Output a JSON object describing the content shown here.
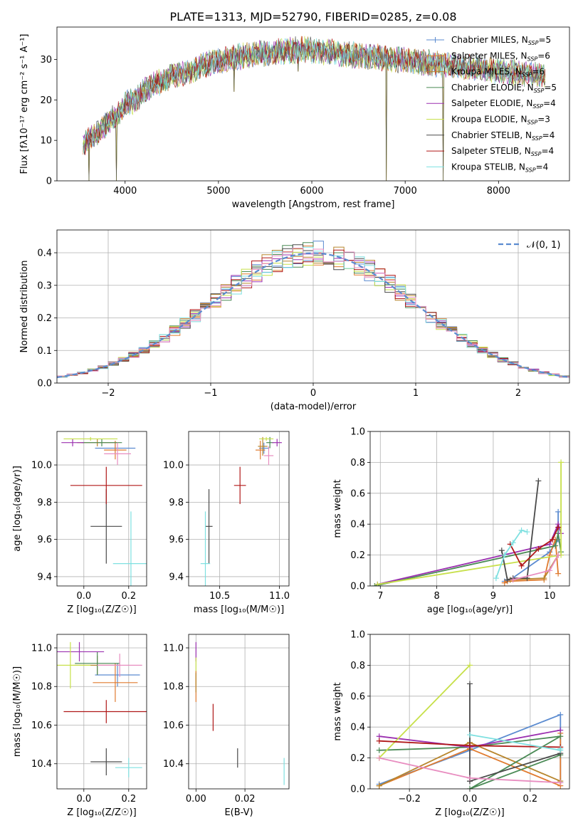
{
  "figure_title": "PLATE=1313, MJD=52790, FIBERID=0285, z=0.08",
  "chart_data": [
    {
      "id": "spectrum",
      "type": "line",
      "xlabel": "wavelength [Angstrom, rest frame]",
      "ylabel": "Flux [f$_\\lambda$10$^{-17}$ erg cm$^{-2}$ s$^{-1}$ A$^{-1}$]",
      "ylabel_display": "Flux [fλ10⁻¹⁷ erg cm⁻² s⁻¹ A⁻¹]",
      "xlim": [
        3270,
        8760
      ],
      "ylim": [
        0,
        38
      ],
      "xticks": [
        4000,
        5000,
        6000,
        7000,
        8000
      ],
      "yticks": [
        0,
        10,
        20,
        30
      ],
      "grid": false,
      "legend_position": "upper-right",
      "series": [
        {
          "name": "Chabrier MILES, N_SSP=5",
          "color": "#5b8bd0",
          "marker": "+"
        },
        {
          "name": "Salpeter MILES, N_SSP=6",
          "color": "#e07b2f",
          "marker": "+"
        },
        {
          "name": "Kroupa MILES, N_SSP=6",
          "color": "#b8862e",
          "marker": ""
        },
        {
          "name": "Chabrier ELODIE, N_SSP=5",
          "color": "#4a8a55",
          "marker": ""
        },
        {
          "name": "Salpeter ELODIE, N_SSP=4",
          "color": "#9b30b0",
          "marker": ""
        },
        {
          "name": "Kroupa ELODIE, N_SSP=3",
          "color": "#c7e04a",
          "marker": ""
        },
        {
          "name": "Chabrier STELIB, N_SSP=4",
          "color": "#4a4a4a",
          "marker": ""
        },
        {
          "name": "Salpeter STELIB, N_SSP=4",
          "color": "#b01818",
          "marker": ""
        },
        {
          "name": "Kroupa STELIB, N_SSP=4",
          "color": "#7ee0e0",
          "marker": ""
        }
      ],
      "legend_labels": [
        {
          "base": "Chabrier MILES, N",
          "sub": "SSP",
          "tail": "=5"
        },
        {
          "base": "Salpeter MILES, N",
          "sub": "SSP",
          "tail": "=6"
        },
        {
          "base": "Kroupa MILES, N",
          "sub": "SSP",
          "tail": "=6"
        },
        {
          "base": "Chabrier ELODIE, N",
          "sub": "SSP",
          "tail": "=5"
        },
        {
          "base": "Salpeter ELODIE, N",
          "sub": "SSP",
          "tail": "=4"
        },
        {
          "base": "Kroupa ELODIE, N",
          "sub": "SSP",
          "tail": "=3"
        },
        {
          "base": "Chabrier STELIB, N",
          "sub": "SSP",
          "tail": "=4"
        },
        {
          "base": "Salpeter STELIB, N",
          "sub": "SSP",
          "tail": "=4"
        },
        {
          "base": "Kroupa STELIB, N",
          "sub": "SSP",
          "tail": "=4"
        }
      ],
      "continuum": {
        "x": [
          3550,
          3650,
          3750,
          3850,
          3950,
          4000,
          4100,
          4200,
          4300,
          4400,
          4500,
          4700,
          4900,
          5100,
          5300,
          5500,
          5700,
          5900,
          6100,
          6300,
          6500,
          6700,
          6900,
          7100,
          7300,
          7500,
          7700,
          7900,
          8100,
          8300,
          8500
        ],
        "y": [
          9,
          11,
          13,
          15,
          17,
          19,
          20,
          22,
          24,
          24.5,
          26,
          27,
          29,
          30,
          31,
          31.5,
          32,
          32.5,
          32,
          31.5,
          31,
          30.5,
          30,
          29.5,
          29,
          28.5,
          28,
          27.5,
          27,
          26.5,
          26
        ]
      },
      "dips": [
        {
          "x": 3610,
          "y": 0
        },
        {
          "x": 3910,
          "y": 0
        },
        {
          "x": 5170,
          "y": 22
        },
        {
          "x": 6800,
          "y": 0
        },
        {
          "x": 7410,
          "y": 0
        },
        {
          "x": 5850,
          "y": 27
        }
      ]
    },
    {
      "id": "residuals",
      "type": "histogram",
      "xlabel": "(data-model)/error",
      "ylabel": "Normed distribution",
      "xlim": [
        -2.5,
        2.5
      ],
      "ylim": [
        0,
        0.47
      ],
      "xticks": [
        -2,
        -1,
        0,
        1,
        2
      ],
      "xtick_labels": [
        "−2",
        "−1",
        "0",
        "1",
        "2"
      ],
      "yticks": [
        0.0,
        0.1,
        0.2,
        0.3,
        0.4
      ],
      "ytick_labels": [
        "0.0",
        "0.1",
        "0.2",
        "0.3",
        "0.4"
      ],
      "grid": true,
      "legend_position": "upper-right",
      "legend_label": "𝒩(0, 1)",
      "normal_curve_color": "#5b8bd0",
      "bin_width": 0.1
    },
    {
      "id": "age-vs-Z",
      "type": "errorbar",
      "xlabel": "Z [log₁₀(Z/Z☉)]",
      "ylabel": "age  [log₁₀(age/yr)]",
      "xlim": [
        -0.12,
        0.28
      ],
      "ylim": [
        9.35,
        10.18
      ],
      "xticks": [
        0.0,
        0.2
      ],
      "xtick_labels": [
        "0.0",
        "0.2"
      ],
      "yticks": [
        9.4,
        9.6,
        9.8,
        10.0
      ],
      "ytick_labels": [
        "9.4",
        "9.6",
        "9.8",
        "10.0"
      ],
      "grid": true,
      "points": [
        {
          "x": 0.14,
          "xerr": 0.09,
          "y": 10.09,
          "yerr": 0.03,
          "color": "#5b8bd0"
        },
        {
          "x": 0.14,
          "xerr": 0.05,
          "y": 10.08,
          "yerr": 0.05,
          "color": "#e07b2f"
        },
        {
          "x": 0.06,
          "xerr": 0.09,
          "y": 10.12,
          "yerr": 0.02,
          "color": "#b8862e"
        },
        {
          "x": 0.08,
          "xerr": 0.09,
          "y": 10.12,
          "yerr": 0.02,
          "color": "#4a8a55"
        },
        {
          "x": -0.05,
          "xerr": 0.05,
          "y": 10.12,
          "yerr": 0.02,
          "color": "#9b30b0"
        },
        {
          "x": 0.03,
          "xerr": 0.12,
          "y": 10.14,
          "yerr": 0.01,
          "color": "#c7e04a"
        },
        {
          "x": 0.1,
          "xerr": 0.07,
          "y": 9.67,
          "yerr": 0.2,
          "color": "#4a4a4a"
        },
        {
          "x": 0.1,
          "xerr": 0.16,
          "y": 9.89,
          "yerr": 0.1,
          "color": "#b01818"
        },
        {
          "x": 0.21,
          "xerr": 0.08,
          "y": 9.47,
          "yerr": 0.28,
          "color": "#7ee0e0"
        },
        {
          "x": 0.15,
          "xerr": 0.06,
          "y": 10.06,
          "yerr": 0.06,
          "color": "#e88dc0"
        }
      ]
    },
    {
      "id": "age-vs-mass",
      "type": "errorbar",
      "xlabel": "mass [log₁₀(M/M☉)]",
      "ylabel": "",
      "xlim": [
        10.24,
        11.08
      ],
      "ylim": [
        9.35,
        10.18
      ],
      "xticks": [
        10.5,
        11.0
      ],
      "xtick_labels": [
        "10.5",
        "11.0"
      ],
      "yticks": [
        9.4,
        9.6,
        9.8,
        10.0
      ],
      "ytick_labels": [
        "9.4",
        "9.6",
        "9.8",
        "10.0"
      ],
      "grid": true,
      "points": [
        {
          "x": 10.87,
          "xerr": 0.04,
          "y": 10.09,
          "yerr": 0.03,
          "color": "#5b8bd0"
        },
        {
          "x": 10.84,
          "xerr": 0.04,
          "y": 10.08,
          "yerr": 0.05,
          "color": "#e07b2f"
        },
        {
          "x": 10.86,
          "xerr": 0.04,
          "y": 10.1,
          "yerr": 0.05,
          "color": "#b8862e"
        },
        {
          "x": 10.92,
          "xerr": 0.03,
          "y": 10.12,
          "yerr": 0.03,
          "color": "#4a8a55"
        },
        {
          "x": 10.98,
          "xerr": 0.04,
          "y": 10.12,
          "yerr": 0.02,
          "color": "#9b30b0"
        },
        {
          "x": 10.89,
          "xerr": 0.06,
          "y": 10.14,
          "yerr": 0.01,
          "color": "#c7e04a"
        },
        {
          "x": 10.41,
          "xerr": 0.03,
          "y": 9.67,
          "yerr": 0.2,
          "color": "#4a4a4a"
        },
        {
          "x": 10.67,
          "xerr": 0.05,
          "y": 9.89,
          "yerr": 0.1,
          "color": "#b01818"
        },
        {
          "x": 10.38,
          "xerr": 0.04,
          "y": 9.47,
          "yerr": 0.28,
          "color": "#7ee0e0"
        },
        {
          "x": 10.91,
          "xerr": 0.04,
          "y": 10.05,
          "yerr": 0.05,
          "color": "#e88dc0"
        }
      ]
    },
    {
      "id": "weight-vs-age",
      "type": "line",
      "xlabel": "age  [log₁₀(age/yr)]",
      "ylabel": "mass weight",
      "xlim": [
        6.82,
        10.35
      ],
      "ylim": [
        0,
        1
      ],
      "xticks": [
        7,
        8,
        9,
        10
      ],
      "xtick_labels": [
        "7",
        "8",
        "9",
        "10"
      ],
      "yticks": [
        0.0,
        0.2,
        0.4,
        0.6,
        0.8,
        1.0
      ],
      "ytick_labels": [
        "0.0",
        "0.2",
        "0.4",
        "0.6",
        "0.8",
        "1.0"
      ],
      "grid": true,
      "series": [
        {
          "color": "#5b8bd0",
          "x": [
            9.2,
            9.3,
            10.0,
            10.15,
            10.15
          ],
          "y": [
            0.03,
            0.04,
            0.22,
            0.3,
            0.48
          ]
        },
        {
          "color": "#e07b2f",
          "x": [
            9.2,
            9.25,
            9.9,
            10.0,
            10.1,
            10.15
          ],
          "y": [
            0.02,
            0.03,
            0.04,
            0.2,
            0.3,
            0.08
          ]
        },
        {
          "color": "#b8862e",
          "x": [
            9.3,
            9.9,
            10.15
          ],
          "y": [
            0.04,
            0.05,
            0.2
          ]
        },
        {
          "color": "#4a8a55",
          "x": [
            6.9,
            10.1,
            10.15,
            10.2
          ],
          "y": [
            0.0,
            0.26,
            0.34,
            0.22
          ]
        },
        {
          "color": "#9b30b0",
          "x": [
            6.95,
            10.0,
            10.15,
            10.2
          ],
          "y": [
            0.01,
            0.27,
            0.4,
            0.34
          ]
        },
        {
          "color": "#c7e04a",
          "x": [
            6.95,
            10.2,
            10.2
          ],
          "y": [
            0.01,
            0.2,
            0.8
          ]
        },
        {
          "color": "#4a4a4a",
          "x": [
            9.15,
            9.25,
            9.35,
            9.6,
            9.8
          ],
          "y": [
            0.23,
            0.04,
            0.05,
            0.05,
            0.68
          ]
        },
        {
          "color": "#b01818",
          "x": [
            9.3,
            9.5,
            9.8,
            10.05,
            10.15
          ],
          "y": [
            0.27,
            0.13,
            0.24,
            0.3,
            0.38
          ]
        },
        {
          "color": "#7ee0e0",
          "x": [
            9.05,
            9.2,
            9.35,
            9.5,
            9.6
          ],
          "y": [
            0.05,
            0.2,
            0.28,
            0.36,
            0.35
          ]
        },
        {
          "color": "#e88dc0",
          "x": [
            9.35,
            10.0,
            10.15
          ],
          "y": [
            0.04,
            0.1,
            0.2
          ]
        }
      ]
    },
    {
      "id": "mass-vs-Z",
      "type": "errorbar",
      "xlabel": "Z [log₁₀(Z/Z☉)]",
      "ylabel": "mass [log₁₀(M/M☉)]",
      "xlim": [
        -0.12,
        0.28
      ],
      "ylim": [
        10.27,
        11.07
      ],
      "xticks": [
        0.0,
        0.2
      ],
      "xtick_labels": [
        "0.0",
        "0.2"
      ],
      "yticks": [
        10.4,
        10.6,
        10.8,
        11.0
      ],
      "ytick_labels": [
        "10.4",
        "10.6",
        "10.8",
        "11.0"
      ],
      "grid": true,
      "points": [
        {
          "x": 0.15,
          "xerr": 0.1,
          "y": 10.86,
          "yerr": 0.06,
          "color": "#5b8bd0"
        },
        {
          "x": 0.14,
          "xerr": 0.1,
          "y": 10.82,
          "yerr": 0.1,
          "color": "#e07b2f"
        },
        {
          "x": 0.06,
          "xerr": 0.1,
          "y": 10.91,
          "yerr": 0.05,
          "color": "#b8862e"
        },
        {
          "x": 0.06,
          "xerr": 0.1,
          "y": 10.92,
          "yerr": 0.06,
          "color": "#4a8a55"
        },
        {
          "x": -0.02,
          "xerr": 0.11,
          "y": 10.98,
          "yerr": 0.05,
          "color": "#9b30b0"
        },
        {
          "x": -0.06,
          "xerr": 0.09,
          "y": 10.91,
          "yerr": 0.12,
          "color": "#c7e04a"
        },
        {
          "x": 0.1,
          "xerr": 0.07,
          "y": 10.41,
          "yerr": 0.07,
          "color": "#4a4a4a"
        },
        {
          "x": 0.1,
          "xerr": 0.19,
          "y": 10.67,
          "yerr": 0.06,
          "color": "#b01818"
        },
        {
          "x": 0.2,
          "xerr": 0.06,
          "y": 10.38,
          "yerr": 0.05,
          "color": "#7ee0e0"
        },
        {
          "x": 0.16,
          "xerr": 0.1,
          "y": 10.91,
          "yerr": 0.06,
          "color": "#e88dc0"
        }
      ]
    },
    {
      "id": "mass-vs-EBV",
      "type": "errorbar",
      "xlabel": "E(B-V)",
      "ylabel": "",
      "xlim": [
        -0.003,
        0.038
      ],
      "ylim": [
        10.27,
        11.07
      ],
      "xticks": [
        0.0,
        0.02
      ],
      "xtick_labels": [
        "0.00",
        "0.02"
      ],
      "yticks": [
        10.4,
        10.6,
        10.8,
        11.0
      ],
      "ytick_labels": [
        "10.4",
        "10.6",
        "10.8",
        "11.0"
      ],
      "grid": true,
      "points": [
        {
          "x": 0.0,
          "xerr": 0.0,
          "y": 10.98,
          "yerr": 0.05,
          "color": "#9b30b0"
        },
        {
          "x": 0.0,
          "xerr": 0.0,
          "y": 10.88,
          "yerr": 0.07,
          "color": "#c7e04a"
        },
        {
          "x": 0.0,
          "xerr": 0.0,
          "y": 10.8,
          "yerr": 0.08,
          "color": "#e07b2f"
        },
        {
          "x": 0.0,
          "xerr": 0.0,
          "y": 10.82,
          "yerr": 0.05,
          "color": "#b8862e"
        },
        {
          "x": 0.007,
          "xerr": 0.0,
          "y": 10.64,
          "yerr": 0.07,
          "color": "#b01818"
        },
        {
          "x": 0.017,
          "xerr": 0.0,
          "y": 10.43,
          "yerr": 0.05,
          "color": "#4a4a4a"
        },
        {
          "x": 0.036,
          "xerr": 0.0,
          "y": 10.36,
          "yerr": 0.07,
          "color": "#7ee0e0"
        }
      ]
    },
    {
      "id": "weight-vs-Z",
      "type": "line",
      "xlabel": "Z [log₁₀(Z/Z☉)]",
      "ylabel": "mass weight",
      "xlim": [
        -0.33,
        0.33
      ],
      "ylim": [
        0,
        1
      ],
      "xticks": [
        -0.2,
        0.0,
        0.2
      ],
      "xtick_labels": [
        "−0.2",
        "0.0",
        "0.2"
      ],
      "yticks": [
        0.0,
        0.2,
        0.4,
        0.6,
        0.8,
        1.0
      ],
      "ytick_labels": [
        "0.0",
        "0.2",
        "0.4",
        "0.6",
        "0.8",
        "1.0"
      ],
      "grid": true,
      "series": [
        {
          "color": "#5b8bd0",
          "x": [
            -0.3,
            0.0,
            0.3,
            0.3
          ],
          "y": [
            0.03,
            0.25,
            0.48,
            0.04
          ]
        },
        {
          "color": "#e07b2f",
          "x": [
            -0.3,
            0.0,
            0.3,
            0.3
          ],
          "y": [
            0.02,
            0.26,
            0.02,
            0.36
          ]
        },
        {
          "color": "#b8862e",
          "x": [
            -0.3,
            0.0,
            0.3
          ],
          "y": [
            0.02,
            0.3,
            0.05
          ]
        },
        {
          "color": "#4a8a55",
          "x": [
            -0.3,
            0.0,
            0.3,
            0.0,
            0.3
          ],
          "y": [
            0.25,
            0.27,
            0.34,
            0.0,
            0.22
          ]
        },
        {
          "color": "#9b30b0",
          "x": [
            -0.3,
            0.0,
            0.3
          ],
          "y": [
            0.34,
            0.27,
            0.38
          ]
        },
        {
          "color": "#c7e04a",
          "x": [
            -0.3,
            0.0,
            -0.3
          ],
          "y": [
            0.2,
            0.8,
            0.2
          ]
        },
        {
          "color": "#4a4a4a",
          "x": [
            0.0,
            0.0,
            0.3,
            0.0
          ],
          "y": [
            0.68,
            0.05,
            0.23,
            0.05
          ]
        },
        {
          "color": "#b01818",
          "x": [
            -0.3,
            0.0,
            0.3
          ],
          "y": [
            0.31,
            0.28,
            0.27
          ]
        },
        {
          "color": "#7ee0e0",
          "x": [
            0.0,
            0.3,
            0.3
          ],
          "y": [
            0.35,
            0.25,
            0.26
          ]
        },
        {
          "color": "#e88dc0",
          "x": [
            -0.3,
            0.0,
            0.3
          ],
          "y": [
            0.2,
            0.07,
            0.04
          ]
        }
      ]
    }
  ]
}
